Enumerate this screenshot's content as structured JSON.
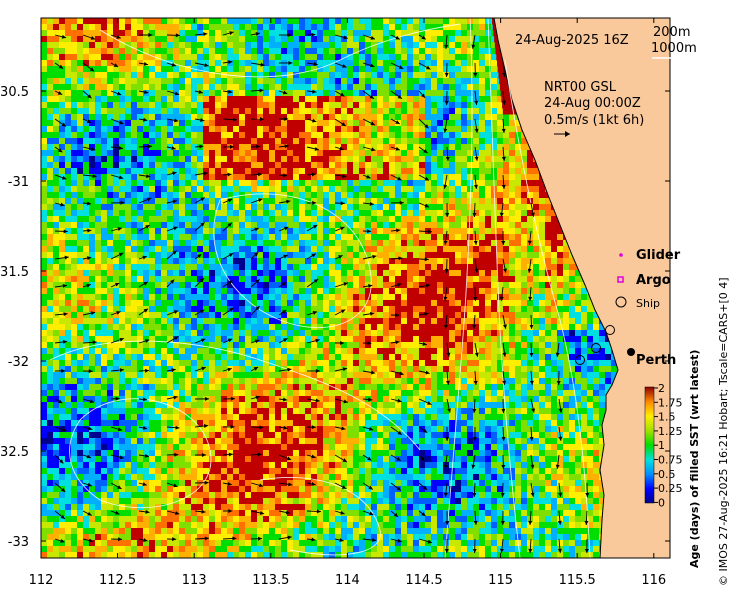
{
  "map": {
    "date_label": "24-Aug-2025 16Z",
    "depth_legend": [
      "200m",
      "1000m"
    ],
    "current_info": [
      "NRT00 GSL",
      "24-Aug 00:00Z",
      "0.5m/s (1kt 6h)"
    ],
    "x_ticks": [
      "112",
      "112.5",
      "113",
      "113.5",
      "114",
      "114.5",
      "115",
      "115.5",
      "116"
    ],
    "y_ticks": [
      "-30.5",
      "-31",
      "-31.5",
      "-32",
      "-32.5",
      "-33"
    ],
    "legend": [
      {
        "label": "Glider",
        "symbol": "dot",
        "color": "#e000e0"
      },
      {
        "label": "Argo",
        "symbol": "square",
        "color": "#e000e0"
      },
      {
        "label": "Ship",
        "symbol": "circle",
        "color": "#000000"
      }
    ],
    "city": "Perth",
    "colorbar": {
      "title": "Age (days) of filled SST (wrt latest)",
      "ticks": [
        "2",
        "1.75",
        "1.5",
        "1.25",
        "1",
        "0.75",
        "0.5",
        "0.25",
        "0"
      ]
    },
    "credit": "© IMOS 27-Aug-2025 16:21 Hobart; Tscale=CARS+[0 4]",
    "land_color": "#f9c89b"
  }
}
